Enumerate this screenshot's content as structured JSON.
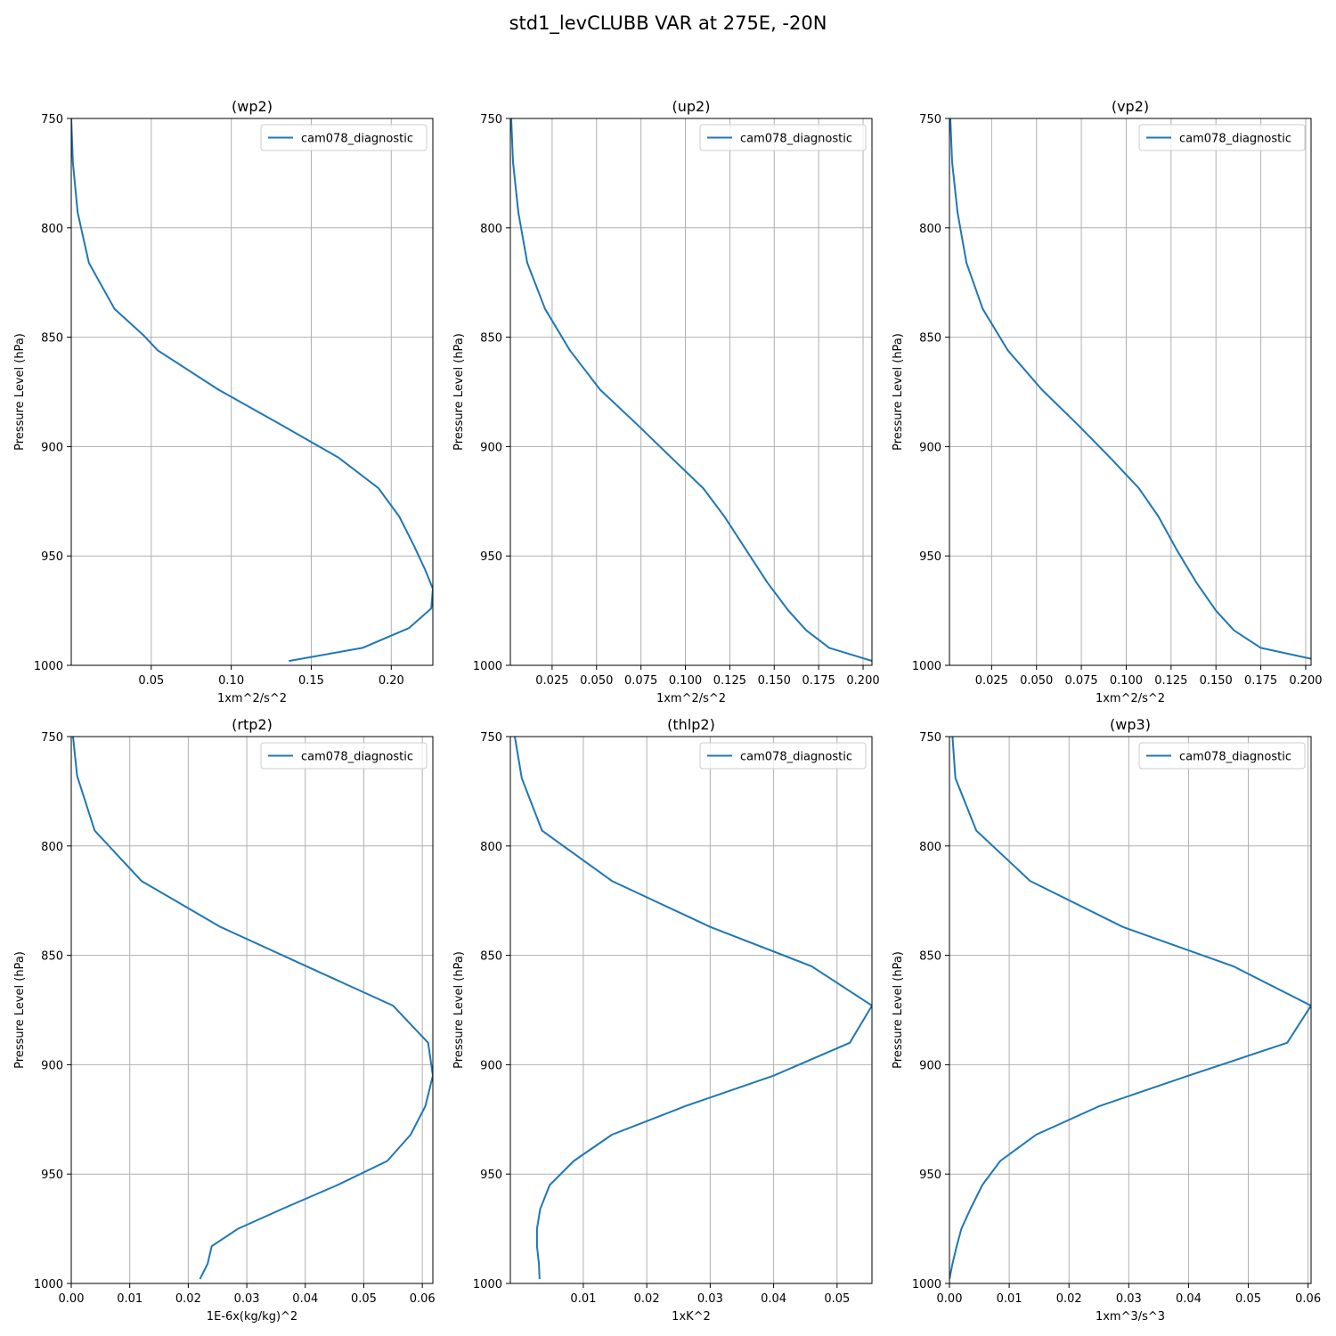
{
  "figure": {
    "title": "std1_levCLUBB VAR at 275E, -20N"
  },
  "colors": {
    "series": "#1f77b4",
    "grid": "#b0b0b0",
    "axis": "#000000"
  },
  "chart_data": [
    {
      "type": "line",
      "title": "(wp2)",
      "xlabel": "1xm^2/s^2",
      "ylabel": "Pressure Level (hPa)",
      "xlim": [
        0.0,
        0.226
      ],
      "ylim": [
        1000,
        750
      ],
      "y_inverted": true,
      "grid": true,
      "legend": "top-right",
      "xticks": [
        0.05,
        0.1,
        0.15,
        0.2
      ],
      "xtick_labels": [
        "0.05",
        "0.10",
        "0.15",
        "0.20"
      ],
      "yticks": [
        750,
        800,
        850,
        900,
        950,
        1000
      ],
      "ytick_labels": [
        "750",
        "800",
        "850",
        "900",
        "950",
        "1000"
      ],
      "series": [
        {
          "name": "cam078_diagnostic",
          "x": [
            0.0,
            0.001,
            0.004,
            0.011,
            0.027,
            0.045,
            0.054,
            0.092,
            0.131,
            0.167,
            0.192,
            0.205,
            0.214,
            0.221,
            0.226,
            0.225,
            0.211,
            0.182,
            0.136
          ],
          "y": [
            750,
            770,
            793,
            816,
            837,
            849,
            856,
            874,
            890,
            905,
            919,
            932,
            945,
            956,
            965,
            974,
            983,
            992,
            998
          ]
        }
      ]
    },
    {
      "type": "line",
      "title": "(up2)",
      "xlabel": "1xm^2/s^2",
      "ylabel": "Pressure Level (hPa)",
      "xlim": [
        0.0015,
        0.205
      ],
      "ylim": [
        1000,
        750
      ],
      "y_inverted": true,
      "grid": true,
      "legend": "top-right",
      "xticks": [
        0.025,
        0.05,
        0.075,
        0.1,
        0.125,
        0.15,
        0.175,
        0.2
      ],
      "xtick_labels": [
        "0.025",
        "0.050",
        "0.075",
        "0.100",
        "0.125",
        "0.150",
        "0.175",
        "0.200"
      ],
      "yticks": [
        750,
        800,
        850,
        900,
        950,
        1000
      ],
      "ytick_labels": [
        "750",
        "800",
        "850",
        "900",
        "950",
        "1000"
      ],
      "series": [
        {
          "name": "cam078_diagnostic",
          "x": [
            0.002,
            0.003,
            0.006,
            0.011,
            0.021,
            0.035,
            0.052,
            0.073,
            0.092,
            0.11,
            0.122,
            0.134,
            0.146,
            0.158,
            0.168,
            0.181,
            0.205
          ],
          "y": [
            750,
            770,
            793,
            816,
            837,
            856,
            874,
            890,
            905,
            919,
            932,
            947,
            962,
            975,
            984,
            992,
            998
          ]
        }
      ]
    },
    {
      "type": "line",
      "title": "(vp2)",
      "xlabel": "1xm^2/s^2",
      "ylabel": "Pressure Level (hPa)",
      "xlim": [
        0.0015,
        0.203
      ],
      "ylim": [
        1000,
        750
      ],
      "y_inverted": true,
      "grid": true,
      "legend": "top-right",
      "xticks": [
        0.025,
        0.05,
        0.075,
        0.1,
        0.125,
        0.15,
        0.175,
        0.2
      ],
      "xtick_labels": [
        "0.025",
        "0.050",
        "0.075",
        "0.100",
        "0.125",
        "0.150",
        "0.175",
        "0.200"
      ],
      "yticks": [
        750,
        800,
        850,
        900,
        950,
        1000
      ],
      "ytick_labels": [
        "750",
        "800",
        "850",
        "900",
        "950",
        "1000"
      ],
      "series": [
        {
          "name": "cam078_diagnostic",
          "x": [
            0.002,
            0.003,
            0.006,
            0.011,
            0.02,
            0.034,
            0.053,
            0.073,
            0.091,
            0.107,
            0.118,
            0.128,
            0.139,
            0.15,
            0.16,
            0.175,
            0.203
          ],
          "y": [
            750,
            770,
            793,
            816,
            837,
            856,
            874,
            890,
            905,
            919,
            932,
            947,
            962,
            975,
            984,
            992,
            997
          ]
        }
      ]
    },
    {
      "type": "line",
      "title": "(rtp2)",
      "xlabel": "1E-6x(kg/kg)^2",
      "ylabel": "Pressure Level (hPa)",
      "xlim": [
        0.0,
        0.0618
      ],
      "ylim": [
        1000,
        750
      ],
      "y_inverted": true,
      "grid": true,
      "legend": "top-right",
      "xticks": [
        0.0,
        0.01,
        0.02,
        0.03,
        0.04,
        0.05,
        0.06
      ],
      "xtick_labels": [
        "0.00",
        "0.01",
        "0.02",
        "0.03",
        "0.04",
        "0.05",
        "0.06"
      ],
      "yticks": [
        750,
        800,
        850,
        900,
        950,
        1000
      ],
      "ytick_labels": [
        "750",
        "800",
        "850",
        "900",
        "950",
        "1000"
      ],
      "series": [
        {
          "name": "cam078_diagnostic",
          "x": [
            0.0003,
            0.001,
            0.004,
            0.012,
            0.0255,
            0.041,
            0.055,
            0.061,
            0.0618,
            0.0605,
            0.058,
            0.054,
            0.0455,
            0.036,
            0.0285,
            0.024,
            0.0233,
            0.022
          ],
          "y": [
            750,
            768,
            793,
            816,
            837,
            856,
            873,
            890,
            905,
            919,
            932,
            944,
            955,
            966,
            975,
            983,
            991,
            998
          ]
        }
      ]
    },
    {
      "type": "line",
      "title": "(thlp2)",
      "xlabel": "1xK^2",
      "ylabel": "Pressure Level (hPa)",
      "xlim": [
        -0.0015,
        0.0555
      ],
      "ylim": [
        1000,
        750
      ],
      "y_inverted": true,
      "grid": true,
      "legend": "top-right",
      "xticks": [
        0.01,
        0.02,
        0.03,
        0.04,
        0.05
      ],
      "xtick_labels": [
        "0.01",
        "0.02",
        "0.03",
        "0.04",
        "0.05"
      ],
      "yticks": [
        750,
        800,
        850,
        900,
        950,
        1000
      ],
      "ytick_labels": [
        "750",
        "800",
        "850",
        "900",
        "950",
        "1000"
      ],
      "series": [
        {
          "name": "cam078_diagnostic",
          "x": [
            -0.0008,
            0.0003,
            0.0035,
            0.0145,
            0.03,
            0.046,
            0.0555,
            0.052,
            0.04,
            0.026,
            0.0145,
            0.0085,
            0.0047,
            0.0032,
            0.0027,
            0.0027,
            0.003,
            0.0031
          ],
          "y": [
            750,
            769,
            793,
            816,
            837,
            855,
            873,
            890,
            905,
            919,
            932,
            944,
            955,
            966,
            975,
            983,
            991,
            998
          ]
        }
      ]
    },
    {
      "type": "line",
      "title": "(wp3)",
      "xlabel": "1xm^3/s^3",
      "ylabel": "Pressure Level (hPa)",
      "xlim": [
        0.0,
        0.0605
      ],
      "ylim": [
        1000,
        750
      ],
      "y_inverted": true,
      "grid": true,
      "legend": "top-right",
      "xticks": [
        0.0,
        0.01,
        0.02,
        0.03,
        0.04,
        0.05,
        0.06
      ],
      "xtick_labels": [
        "0.00",
        "0.01",
        "0.02",
        "0.03",
        "0.04",
        "0.05",
        "0.06"
      ],
      "yticks": [
        750,
        800,
        850,
        900,
        950,
        1000
      ],
      "ytick_labels": [
        "750",
        "800",
        "850",
        "900",
        "950",
        "1000"
      ],
      "series": [
        {
          "name": "cam078_diagnostic",
          "x": [
            0.0005,
            0.001,
            0.0045,
            0.0135,
            0.029,
            0.0475,
            0.0605,
            0.0565,
            0.04,
            0.025,
            0.0145,
            0.0085,
            0.0055,
            0.0035,
            0.002,
            0.0012,
            0.0005,
            0.0
          ],
          "y": [
            750,
            769,
            793,
            816,
            837,
            855,
            873,
            890,
            905,
            919,
            932,
            944,
            955,
            966,
            975,
            983,
            991,
            998
          ]
        }
      ]
    }
  ]
}
